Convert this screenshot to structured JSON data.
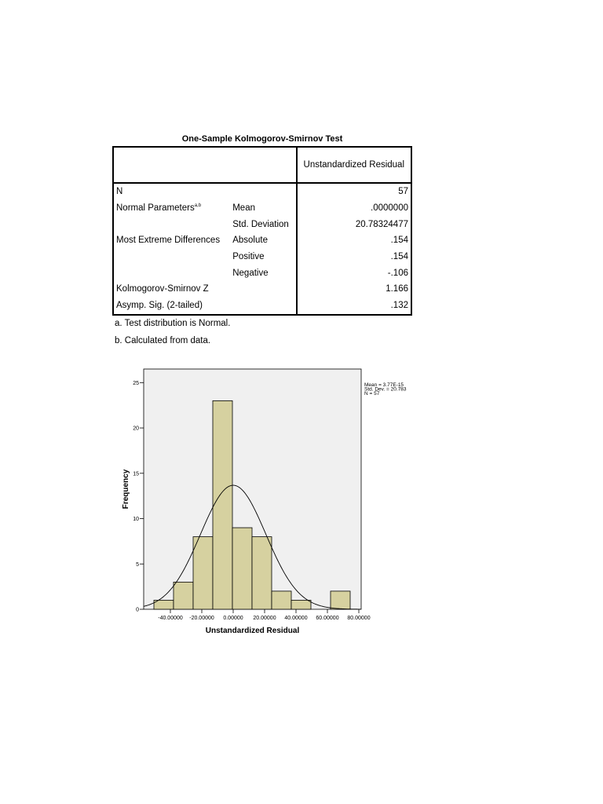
{
  "table": {
    "title": "One-Sample Kolmogorov-Smirnov Test",
    "column_header": "Unstandardized Residual",
    "rows": [
      {
        "label": "N",
        "value": "57"
      },
      {
        "label": "Normal Parameters",
        "sup": "a,b",
        "stat": "Mean",
        "value": ".0000000"
      },
      {
        "stat": "Std. Deviation",
        "value": "20.78324477"
      },
      {
        "label": "Most Extreme Differences",
        "stat": "Absolute",
        "value": ".154"
      },
      {
        "stat": "Positive",
        "value": ".154"
      },
      {
        "stat": "Negative",
        "value": "-.106"
      },
      {
        "label": "Kolmogorov-Smirnov Z",
        "value": "1.166"
      },
      {
        "label": "Asymp. Sig. (2-tailed)",
        "value": ".132"
      }
    ],
    "notes": [
      "a. Test distribution is Normal.",
      "b. Calculated from data."
    ]
  },
  "chart_data": {
    "type": "histogram",
    "x_label": "Unstandardized Residual",
    "y_label": "Frequency",
    "bins": [
      -50.5,
      -38,
      -25.5,
      -13,
      -0.5,
      12,
      24.5,
      37,
      49.5,
      62,
      74.5
    ],
    "values": [
      1,
      3,
      8,
      23,
      9,
      8,
      2,
      1,
      0,
      2
    ],
    "color": "#d6d1a0",
    "xlim": [
      -57,
      81.5
    ],
    "ylim": [
      0,
      26.5
    ],
    "xticks": [
      {
        "value": -40,
        "label": "-40.00000"
      },
      {
        "value": -20,
        "label": "-20.00000"
      },
      {
        "value": 0,
        "label": "0.00000"
      },
      {
        "value": 20,
        "label": "20.00000"
      },
      {
        "value": 40,
        "label": "40.00000"
      },
      {
        "value": 60,
        "label": "60.00000"
      },
      {
        "value": 80,
        "label": "80.00000"
      }
    ],
    "yticks": [
      0,
      5,
      10,
      15,
      20,
      25
    ],
    "curve": {
      "mean": 3.77e-15,
      "sd": 20.783,
      "n": 57
    },
    "annotations": [
      "Mean = 3.77E-15",
      "Std. Dev. = 20.783",
      "N = 57"
    ]
  }
}
